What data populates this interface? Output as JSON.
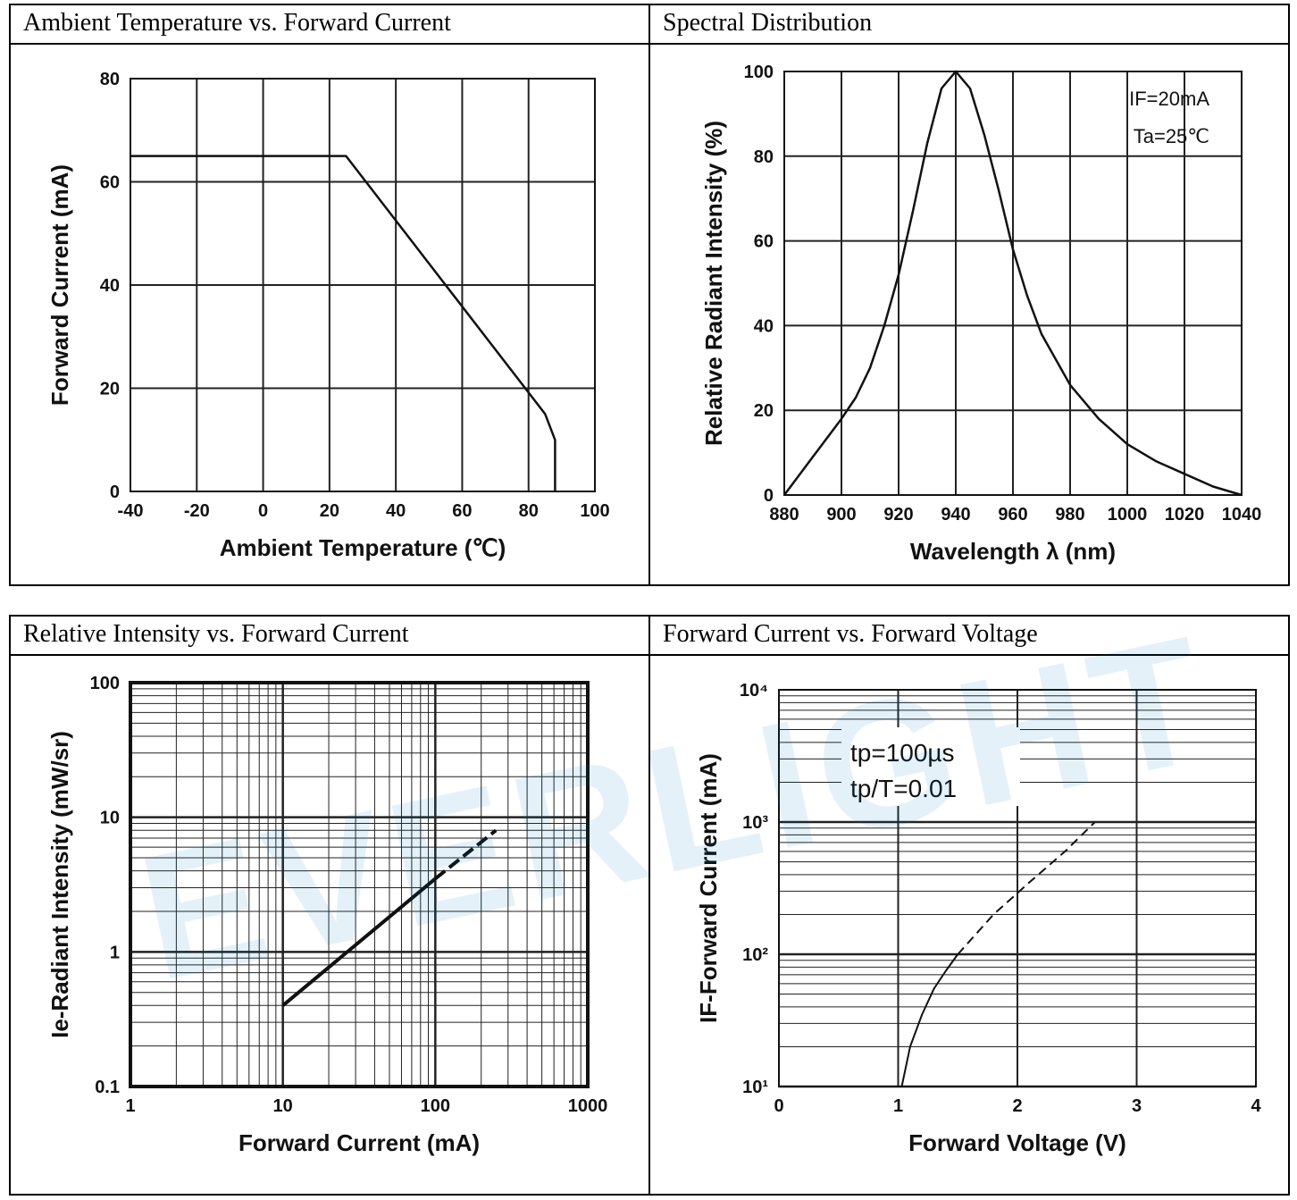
{
  "panels": [
    {
      "title": "Ambient Temperature vs. Forward Current"
    },
    {
      "title": "Spectral Distribution"
    },
    {
      "title": "Relative Intensity vs. Forward Current"
    },
    {
      "title": "Forward Current vs. Forward Voltage"
    }
  ],
  "watermark": "EVERLIGHT",
  "chart_data": [
    {
      "type": "line",
      "title": "Ambient Temperature vs. Forward Current",
      "xlabel": "Ambient Temperature (℃)",
      "ylabel": "Forward Current (mA)",
      "xlim": [
        -40,
        100
      ],
      "ylim": [
        0,
        80
      ],
      "xticks": [
        "-40",
        "-20",
        "0",
        "20",
        "40",
        "60",
        "80",
        "100"
      ],
      "yticks": [
        "0",
        "20",
        "40",
        "60",
        "80"
      ],
      "grid": true,
      "series": [
        {
          "x": [
            -40,
            25,
            85,
            88,
            88
          ],
          "y": [
            65,
            65,
            15,
            10,
            0
          ]
        }
      ]
    },
    {
      "type": "line",
      "title": "Spectral Distribution",
      "xlabel": "Wavelength λ (nm)",
      "ylabel": "Relative Radiant Intensity (%)",
      "xlim": [
        880,
        1040
      ],
      "ylim": [
        0,
        100
      ],
      "xticks": [
        "880",
        "900",
        "920",
        "940",
        "960",
        "980",
        "1000",
        "1020",
        "1040"
      ],
      "yticks": [
        "0",
        "20",
        "40",
        "60",
        "80",
        "100"
      ],
      "grid": true,
      "annotations": [
        "IF=20mA",
        "Ta=25℃"
      ],
      "series": [
        {
          "x": [
            880,
            890,
            900,
            905,
            910,
            915,
            920,
            925,
            930,
            935,
            940,
            945,
            950,
            955,
            960,
            965,
            970,
            980,
            990,
            1000,
            1010,
            1020,
            1030,
            1040
          ],
          "y": [
            0,
            9,
            18,
            23,
            30,
            40,
            52,
            67,
            83,
            96,
            100,
            96,
            85,
            72,
            58,
            47,
            38,
            26,
            18,
            12,
            8,
            5,
            2,
            0
          ]
        }
      ]
    },
    {
      "type": "line",
      "title": "Relative Intensity vs. Forward Current",
      "xlabel": "Forward Current (mA)",
      "ylabel": "Ie-Radiant Intensity (mW/sr)",
      "xscale": "log",
      "yscale": "log",
      "xlim": [
        1,
        1000
      ],
      "ylim": [
        0.1,
        100
      ],
      "xticks": [
        "1",
        "10",
        "100",
        "1000"
      ],
      "yticks": [
        "0.1",
        "1",
        "10",
        "100"
      ],
      "grid": true,
      "series": [
        {
          "style": "solid",
          "x": [
            10,
            100
          ],
          "y": [
            0.4,
            3.5
          ]
        },
        {
          "style": "dashed",
          "x": [
            100,
            250
          ],
          "y": [
            3.5,
            8
          ]
        }
      ]
    },
    {
      "type": "line",
      "title": "Forward Current vs. Forward Voltage",
      "xlabel": "Forward Voltage (V)",
      "ylabel": "IF-Forward Current (mA)",
      "yscale": "log",
      "xlim": [
        0,
        4
      ],
      "ylim": [
        10,
        10000
      ],
      "xticks": [
        "0",
        "1",
        "2",
        "3",
        "4"
      ],
      "yticks": [
        "10",
        "100",
        "1000",
        "10000"
      ],
      "grid": true,
      "annotations": [
        "tp=100µs",
        "tp/T=0.01"
      ],
      "series": [
        {
          "style": "solid",
          "x": [
            1.03,
            1.1,
            1.2,
            1.3,
            1.4,
            1.5
          ],
          "y": [
            10,
            20,
            35,
            55,
            75,
            100
          ]
        },
        {
          "style": "dashed",
          "x": [
            1.5,
            1.8,
            2.1,
            2.4,
            2.65
          ],
          "y": [
            100,
            200,
            350,
            600,
            1000
          ]
        }
      ]
    }
  ]
}
